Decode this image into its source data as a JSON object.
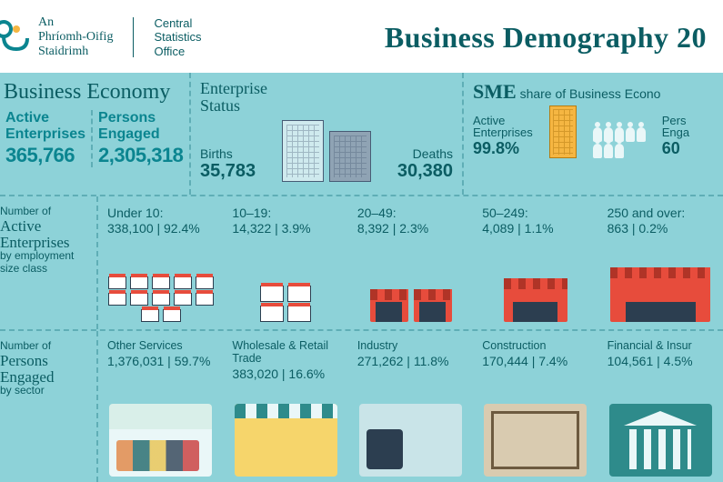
{
  "header": {
    "org_ga_line1": "An",
    "org_ga_line2": "Phríomh-Oifig",
    "org_ga_line3": "Staidrimh",
    "org_en_line1": "Central",
    "org_en_line2": "Statistics",
    "org_en_line3": "Office",
    "title": "Business Demography 20",
    "logo_color": "#0b8590",
    "logo_accent": "#f5b642"
  },
  "colors": {
    "panel_bg": "#8dd2d8",
    "text_primary": "#0b5d63",
    "text_accent": "#0b8590",
    "dash_border": "#5faeb6"
  },
  "business_economy": {
    "section_title": "Business Economy",
    "active_label_line1": "Active",
    "active_label_line2": "Enterprises",
    "active_value": "365,766",
    "persons_label_line1": "Persons",
    "persons_label_line2": "Engaged",
    "persons_value": "2,305,318"
  },
  "enterprise_status": {
    "title_line1": "Enterprise",
    "title_line2": "Status",
    "births_label": "Births",
    "births_value": "35,783",
    "deaths_label": "Deaths",
    "deaths_value": "30,380"
  },
  "sme": {
    "title_prefix": "SME",
    "title_rest": " share of Business Econo",
    "active_label_line1": "Active",
    "active_label_line2": "Enterprises",
    "active_value": "99.8%",
    "persons_label_line1": "Pers",
    "persons_label_line2": "Enga",
    "persons_value": "60"
  },
  "size_classes": {
    "label_small1": "Number of",
    "label_big1": "Active",
    "label_big2": "Enterprises",
    "label_small2": "by employment",
    "label_small3": "size class",
    "items": [
      {
        "head": "Under 10:",
        "val": "338,100 | 92.4%"
      },
      {
        "head": "10–19:",
        "val": "14,322 | 3.9%"
      },
      {
        "head": "20–49:",
        "val": "8,392 | 2.3%"
      },
      {
        "head": "50–249:",
        "val": "4,089 | 1.1%"
      },
      {
        "head": "250 and over:",
        "val": "863 | 0.2%"
      }
    ]
  },
  "sectors": {
    "label_small1": "Number of",
    "label_big1": "Persons",
    "label_big2": "Engaged",
    "label_small2": "by sector",
    "items": [
      {
        "title": "Other Services",
        "val": "1,376,031 | 59.7%",
        "kind": "services"
      },
      {
        "title": "Wholesale & Retail Trade",
        "val": "383,020 | 16.6%",
        "kind": "retail"
      },
      {
        "title": "Industry",
        "val": "271,262 | 11.8%",
        "kind": "industry"
      },
      {
        "title": "Construction",
        "val": "170,444 | 7.4%",
        "kind": "construction"
      },
      {
        "title": "Financial & Insur",
        "val": "104,561 | 4.5%",
        "kind": "finance"
      }
    ]
  }
}
